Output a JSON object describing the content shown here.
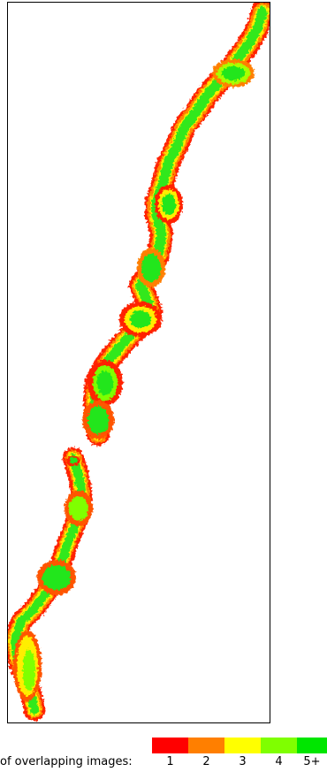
{
  "legend": {
    "label": "of overlapping images:",
    "items": [
      {
        "label": "1",
        "color": "#ff0000"
      },
      {
        "label": "2",
        "color": "#ff7f00"
      },
      {
        "label": "3",
        "color": "#ffff00"
      },
      {
        "label": "4",
        "color": "#7fff00"
      },
      {
        "label": "5+",
        "color": "#00e600"
      }
    ]
  }
}
